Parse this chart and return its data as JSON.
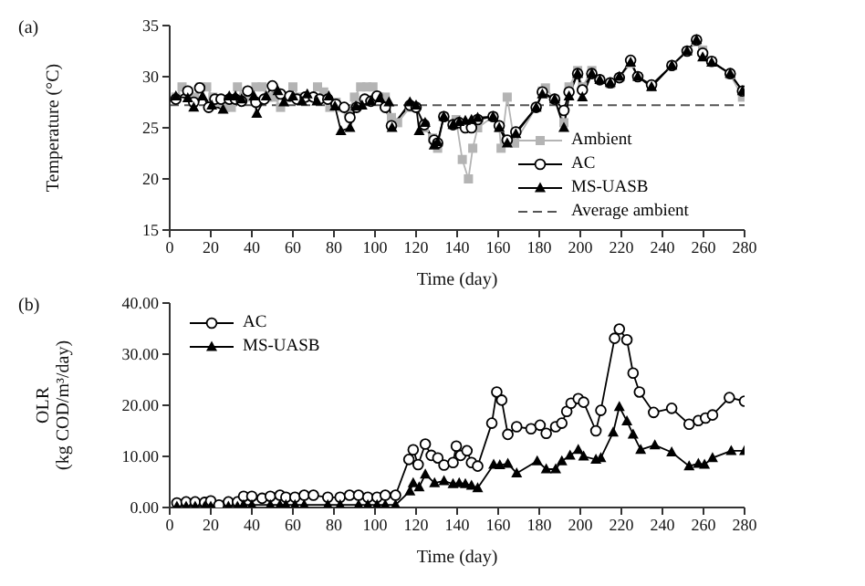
{
  "chart_data": [
    {
      "type": "line",
      "title": "(a)",
      "xlabel": "Time (day)",
      "ylabel": "Temperature (°C)",
      "xlim": [
        0,
        280
      ],
      "xticks": [
        0,
        20,
        40,
        60,
        80,
        100,
        120,
        140,
        160,
        180,
        200,
        220,
        240,
        260,
        280
      ],
      "ylim": [
        15,
        35
      ],
      "yticks": [
        15,
        20,
        25,
        30,
        35
      ],
      "legend": "bottom right",
      "series": [
        {
          "name": "Ambient",
          "color": "#b4b4b4",
          "marker": "square",
          "x": [
            3,
            6,
            9,
            12,
            15,
            18,
            21,
            24,
            27,
            30,
            33,
            36,
            39,
            42,
            45,
            48,
            51,
            54,
            57,
            60,
            63,
            66,
            69,
            72,
            75,
            78,
            81,
            84,
            87,
            90,
            93,
            96,
            99,
            102,
            105,
            108,
            111,
            117,
            120,
            124,
            128,
            130.5,
            133.5,
            138,
            139.5,
            142.5,
            145.5,
            147.6,
            150,
            157.5,
            160.5,
            161.4,
            164.4,
            168,
            178.5,
            181.5,
            183,
            187.5,
            192,
            194.5,
            198.7,
            201,
            205.6,
            209.5,
            214.6,
            219,
            224.5,
            228,
            234.7,
            244.6,
            252,
            256.6,
            259.6,
            264,
            273,
            279
          ],
          "values": [
            28,
            29,
            28.5,
            28,
            29,
            29,
            28,
            27.5,
            27,
            27,
            29,
            28,
            28,
            29,
            29,
            28,
            28,
            27,
            28,
            29,
            28,
            28,
            28,
            29,
            28.5,
            27,
            27.5,
            27,
            26.5,
            28,
            29,
            29,
            29,
            28,
            28,
            26,
            25.5,
            27,
            27,
            25,
            24,
            23,
            26.1,
            25.3,
            25.8,
            21.9,
            20,
            23,
            25,
            26.1,
            25,
            23,
            28,
            23.5,
            27,
            28.6,
            28.9,
            27.8,
            25.5,
            29,
            30.6,
            29,
            30.6,
            29.7,
            29.3,
            29.9,
            31.3,
            30,
            29,
            31.1,
            32.5,
            33.4,
            32.6,
            31.5,
            30.2,
            28
          ]
        },
        {
          "name": "AC",
          "color": "#000000",
          "marker": "circle",
          "x": [
            3,
            8.8,
            11.7,
            14.6,
            19,
            22,
            25,
            29,
            32,
            35,
            38,
            42,
            46,
            50,
            54,
            58.5,
            62,
            66,
            70,
            73,
            77,
            81,
            85,
            87.8,
            91,
            95,
            98,
            101,
            105,
            108,
            117,
            120,
            124,
            128.8,
            130.5,
            133.5,
            138,
            141,
            144,
            147,
            150,
            157.5,
            160.5,
            164.4,
            168.6,
            178.5,
            181.5,
            187.5,
            192,
            194.5,
            198.7,
            201,
            205.6,
            209.5,
            214.6,
            219,
            224.5,
            228,
            234.7,
            244.6,
            252,
            256.6,
            259.6,
            264,
            273,
            279
          ],
          "values": [
            27.8,
            28.6,
            27.5,
            28.9,
            27,
            27.8,
            27.8,
            27.8,
            27.8,
            27.6,
            28.6,
            27.5,
            27.8,
            29.1,
            28.3,
            28.1,
            27.8,
            28,
            28,
            27.8,
            27.8,
            27.3,
            27,
            26,
            27,
            27.8,
            27.6,
            28.1,
            27,
            25.2,
            27.2,
            27,
            25.3,
            23.8,
            23.5,
            26.1,
            25.3,
            25.5,
            25,
            25,
            25.8,
            26.1,
            25.2,
            23.8,
            24.6,
            27,
            28.5,
            27.8,
            26.7,
            28.5,
            30.3,
            28.7,
            30.3,
            29.7,
            29.4,
            29.9,
            31.6,
            30,
            29.2,
            31.1,
            32.5,
            33.6,
            32.3,
            31.5,
            30.3,
            28.6
          ]
        },
        {
          "name": "MS-UASB",
          "color": "#000000",
          "marker": "triangle",
          "x": [
            3,
            8.8,
            11.7,
            16,
            20.5,
            26,
            29,
            32,
            35,
            41,
            42.4,
            47,
            52.7,
            55.6,
            60,
            64.4,
            67,
            71.7,
            77.5,
            80.5,
            83.4,
            87.8,
            90.7,
            93.7,
            98,
            102.4,
            106.8,
            108.3,
            117,
            120,
            121.5,
            124.4,
            128.8,
            130.5,
            133.5,
            138,
            141,
            144,
            147,
            150,
            157.5,
            160.5,
            164.4,
            168.6,
            178.5,
            181.5,
            187.5,
            192,
            194.5,
            198.7,
            201,
            205.6,
            209.5,
            214.6,
            219,
            224.5,
            228,
            234.7,
            244.6,
            252,
            256.6,
            259.6,
            264,
            273,
            279
          ],
          "values": [
            28.1,
            27.9,
            27,
            28.1,
            27.2,
            26.8,
            28.1,
            28.1,
            27.8,
            28.1,
            26.4,
            28.1,
            28.6,
            27.5,
            28.1,
            27.6,
            28.3,
            27.6,
            28.1,
            27.1,
            24.7,
            25,
            27.1,
            27.2,
            27.6,
            27.9,
            27.5,
            25,
            27.5,
            27.2,
            24.7,
            25.5,
            23.3,
            23.6,
            26.1,
            25.3,
            25.6,
            25.7,
            25.8,
            26,
            26.1,
            25,
            23.5,
            24.4,
            27,
            28.3,
            27.8,
            25,
            28.1,
            30.3,
            28,
            30.3,
            29.7,
            29.4,
            30,
            31.4,
            30,
            29,
            31.1,
            32.5,
            33.6,
            31.9,
            31.4,
            30.3,
            28.6
          ]
        }
      ],
      "ref_lines": [
        {
          "axis": "y",
          "value": 27.2,
          "label": "Average ambient",
          "color": "#555555",
          "line_style": "dashed"
        }
      ]
    },
    {
      "type": "line",
      "title": "(b)",
      "xlabel": "Time (day)",
      "ylabel": "OLR\n(kg COD/m³/day)",
      "xlim": [
        0,
        280
      ],
      "xticks": [
        0,
        20,
        40,
        60,
        80,
        100,
        120,
        140,
        160,
        180,
        200,
        220,
        240,
        260,
        280
      ],
      "ylim": [
        0,
        40
      ],
      "yticks": [
        {
          "value": 0,
          "label": "0.00"
        },
        {
          "value": 10,
          "label": "10.00"
        },
        {
          "value": 20,
          "label": "20.00"
        },
        {
          "value": 30,
          "label": "30.00"
        },
        {
          "value": 40,
          "label": "40.00"
        }
      ],
      "legend": "top left",
      "series": [
        {
          "name": "AC",
          "color": "#000000",
          "marker": "circle",
          "x": [
            3.5,
            8,
            12.4,
            17,
            20,
            24,
            28.6,
            33,
            36,
            40,
            45,
            49,
            53.7,
            56.6,
            61,
            65.5,
            70,
            77,
            83,
            87.6,
            92,
            96.5,
            101,
            105,
            110,
            116.5,
            118.6,
            121,
            124.5,
            127.4,
            130.6,
            133.6,
            138,
            139.6,
            141.7,
            144.8,
            147,
            150,
            156.9,
            159.3,
            161.7,
            164.7,
            169,
            176,
            180.4,
            183.4,
            188,
            191,
            193.4,
            195.5,
            199,
            201.6,
            207.6,
            210,
            216.7,
            219,
            222.7,
            225.7,
            228.8,
            235.7,
            244.5,
            253,
            257.5,
            261,
            264.4,
            272.6,
            280
          ],
          "values": [
            0.9,
            1.1,
            1.1,
            1,
            1.3,
            0.5,
            1.1,
            1.1,
            2.2,
            2.2,
            1.8,
            2.2,
            2.4,
            2,
            2,
            2.4,
            2.4,
            2,
            2,
            2.4,
            2.4,
            2,
            2,
            2.4,
            2.4,
            9.4,
            11.3,
            8.4,
            12.4,
            10.2,
            9.7,
            8.3,
            8.8,
            12,
            10.2,
            11.1,
            8.8,
            8.1,
            16.5,
            22.6,
            21,
            14.3,
            15.8,
            15.4,
            16.1,
            14.5,
            15.8,
            16.5,
            18.8,
            20.4,
            21.3,
            20.6,
            15,
            19,
            33.1,
            34.9,
            32.8,
            26.3,
            22.6,
            18.6,
            19.4,
            16.3,
            17,
            17.5,
            18.1,
            21.5,
            20.8
          ]
        },
        {
          "name": "MS-UASB",
          "color": "#000000",
          "marker": "triangle",
          "x": [
            3.5,
            8,
            12.4,
            17,
            20,
            28.6,
            33,
            36,
            40,
            49,
            53.7,
            56.6,
            61,
            65.5,
            77,
            83,
            92,
            96.5,
            101,
            105,
            110,
            117,
            118.6,
            121.5,
            124.5,
            129,
            133.6,
            138,
            141,
            144,
            147,
            150,
            157.8,
            160.8,
            164.7,
            169,
            179,
            183.4,
            188,
            191,
            195,
            199,
            201.6,
            207.6,
            210,
            216,
            219,
            222.7,
            225.7,
            229.4,
            236.3,
            244.5,
            253,
            257.5,
            260.5,
            264.4,
            273.5,
            280
          ],
          "values": [
            0.2,
            0.2,
            0.2,
            0.2,
            0.2,
            0.2,
            0.2,
            0.5,
            0.5,
            0.5,
            0.5,
            0.5,
            0.5,
            0.5,
            0.5,
            0.5,
            0.5,
            0.5,
            0.5,
            0.5,
            0.5,
            3.2,
            4.8,
            4,
            6.5,
            4.8,
            5.2,
            4.6,
            4.8,
            4.6,
            4.3,
            3.8,
            8.4,
            8.3,
            8.6,
            6.7,
            9.1,
            7.5,
            7.5,
            9.1,
            10.2,
            11.3,
            10,
            9.4,
            9.7,
            14.7,
            19.7,
            16.9,
            14.3,
            11.3,
            12.2,
            10.8,
            8.1,
            8.6,
            8.4,
            9.7,
            11.1,
            11.1
          ]
        }
      ]
    }
  ]
}
